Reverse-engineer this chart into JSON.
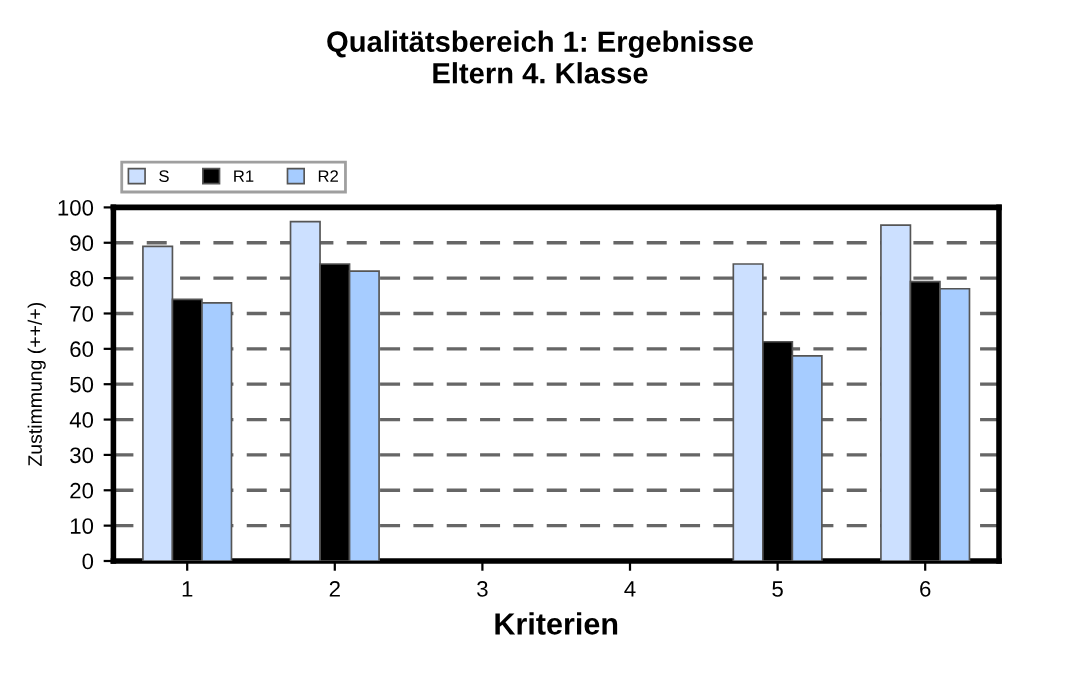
{
  "chart_data": {
    "type": "bar",
    "title": "Qualitätsbereich 1: Ergebnisse\nEltern 4. Klasse",
    "xlabel": "Kriterien",
    "ylabel": "Zustimmung (++/+)",
    "categories": [
      "1",
      "2",
      "3",
      "4",
      "5",
      "6"
    ],
    "series": [
      {
        "name": "S",
        "color": "#cce0ff",
        "values": [
          89,
          96,
          null,
          null,
          84,
          95
        ]
      },
      {
        "name": "R1",
        "color": "#000000",
        "values": [
          74,
          84,
          null,
          null,
          62,
          79
        ]
      },
      {
        "name": "R2",
        "color": "#a6ccff",
        "values": [
          73,
          82,
          null,
          null,
          58,
          77
        ]
      }
    ],
    "ylim": [
      0,
      100
    ],
    "yticks": [
      0,
      10,
      20,
      30,
      40,
      50,
      60,
      70,
      80,
      90,
      100
    ],
    "grid": "y",
    "legend": "top left"
  }
}
